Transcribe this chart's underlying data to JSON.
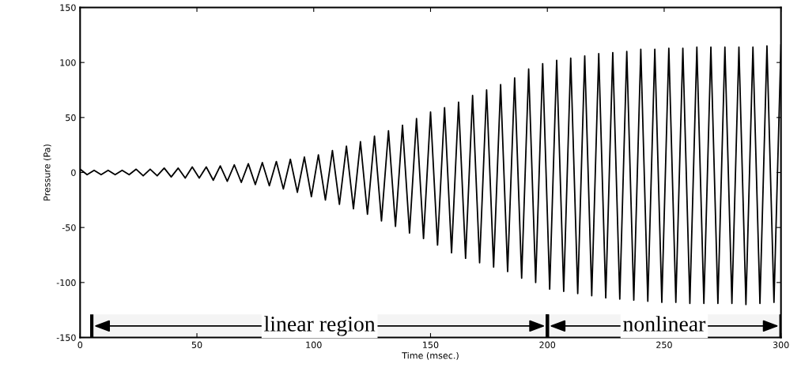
{
  "chart_data": {
    "type": "line",
    "xlabel": "Time (msec.)",
    "ylabel": "Pressure (Pa)",
    "xlim": [
      0,
      300
    ],
    "xticks": [
      0,
      50,
      100,
      150,
      200,
      250,
      300
    ],
    "ylim": [
      -150,
      150
    ],
    "yticks": [
      -150,
      -100,
      -50,
      0,
      50,
      100,
      150
    ],
    "grid": false,
    "line_style": "solid",
    "series": [
      {
        "color": "#000000",
        "x": [
          0,
          3,
          6,
          9,
          12,
          15,
          18,
          21,
          24,
          27,
          30,
          33,
          36,
          39,
          42,
          45,
          48,
          51,
          54,
          57,
          60,
          63,
          66,
          69,
          72,
          75,
          78,
          81,
          84,
          87,
          90,
          93,
          96,
          99,
          102,
          105,
          108,
          111,
          114,
          117,
          120,
          123,
          126,
          129,
          132,
          135,
          138,
          141,
          144,
          147,
          150,
          153,
          156,
          159,
          162,
          165,
          168,
          171,
          174,
          177,
          180,
          183,
          186,
          189,
          192,
          195,
          198,
          201,
          204,
          207,
          210,
          213,
          216,
          219,
          222,
          225,
          228,
          231,
          234,
          237,
          240,
          243,
          246,
          249,
          252,
          255,
          258,
          261,
          264,
          267,
          270,
          273,
          276,
          279,
          282,
          285,
          288,
          291,
          294,
          297,
          300
        ],
        "values": [
          3,
          -2,
          2,
          -2,
          2,
          -2,
          2,
          -2,
          3,
          -3,
          3,
          -3,
          4,
          -4,
          4,
          -5,
          5,
          -5,
          5,
          -7,
          6,
          -8,
          7,
          -9,
          8,
          -11,
          9,
          -12,
          10,
          -15,
          12,
          -18,
          14,
          -22,
          16,
          -25,
          20,
          -29,
          24,
          -33,
          28,
          -38,
          33,
          -44,
          38,
          -49,
          43,
          -55,
          49,
          -60,
          55,
          -66,
          59,
          -73,
          64,
          -78,
          70,
          -82,
          75,
          -86,
          80,
          -90,
          86,
          -96,
          94,
          -100,
          99,
          -106,
          102,
          -108,
          104,
          -110,
          106,
          -112,
          108,
          -114,
          109,
          -115,
          110,
          -116,
          112,
          -117,
          112,
          -118,
          113,
          -118,
          113,
          -119,
          114,
          -119,
          114,
          -119,
          114,
          -119,
          114,
          -120,
          114,
          -119,
          115,
          -118,
          116
        ]
      }
    ],
    "bands": [
      {
        "axis": "x",
        "from": 5,
        "to": 200,
        "label": "linear region"
      },
      {
        "axis": "x",
        "from": 200,
        "to": 300,
        "label": "nonlinear"
      }
    ]
  }
}
